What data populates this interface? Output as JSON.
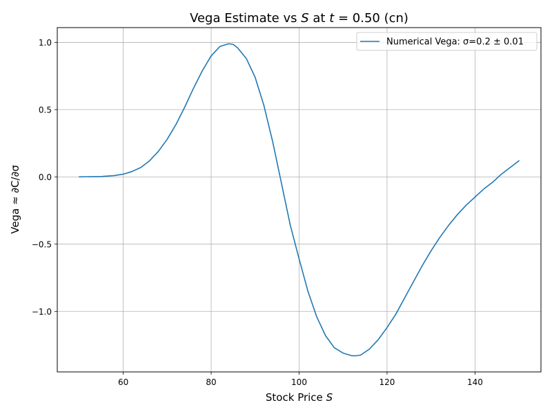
{
  "chart_data": {
    "type": "line",
    "title": "Vega Estimate vs S at t = 0.50 (cn)",
    "title_parts": {
      "a": "Vega Estimate vs ",
      "b": "S",
      "c": " at ",
      "d": "t",
      "e": " = 0.50 (cn)"
    },
    "xlabel": "Stock Price S",
    "xlabel_parts": {
      "a": "Stock Price ",
      "b": "S"
    },
    "ylabel": "Vega ≈ ∂C/∂σ",
    "xlim": [
      45,
      155
    ],
    "ylim": [
      -1.45,
      1.11
    ],
    "xticks": [
      60,
      80,
      100,
      120,
      140
    ],
    "xtick_labels": [
      "60",
      "80",
      "100",
      "120",
      "140"
    ],
    "yticks": [
      1.0,
      0.5,
      0.0,
      -0.5,
      -1.0
    ],
    "ytick_labels": [
      "1.0",
      "0.5",
      "0.0",
      "−0.5",
      "−1.0"
    ],
    "grid": true,
    "legend_position": "top-right",
    "series": [
      {
        "name": "Numerical Vega: σ=0.2 ± 0.01",
        "color": "#1f77b4",
        "x": [
          50,
          55,
          58,
          60,
          62,
          64,
          66,
          68,
          70,
          72,
          74,
          76,
          78,
          80,
          82,
          84,
          85,
          86,
          88,
          90,
          92,
          94,
          96,
          98,
          100,
          102,
          104,
          106,
          108,
          110,
          112,
          113,
          114,
          116,
          118,
          120,
          122,
          124,
          126,
          128,
          130,
          132,
          134,
          136,
          138,
          140,
          142,
          144,
          146,
          148,
          150
        ],
        "y": [
          0.0,
          0.003,
          0.01,
          0.02,
          0.04,
          0.07,
          0.12,
          0.19,
          0.28,
          0.39,
          0.52,
          0.66,
          0.79,
          0.9,
          0.97,
          0.99,
          0.985,
          0.96,
          0.88,
          0.74,
          0.53,
          0.26,
          -0.05,
          -0.36,
          -0.61,
          -0.85,
          -1.04,
          -1.18,
          -1.27,
          -1.31,
          -1.33,
          -1.33,
          -1.325,
          -1.28,
          -1.21,
          -1.12,
          -1.02,
          -0.9,
          -0.78,
          -0.66,
          -0.55,
          -0.45,
          -0.36,
          -0.28,
          -0.21,
          -0.15,
          -0.09,
          -0.04,
          0.02,
          0.07,
          0.12
        ]
      }
    ]
  }
}
